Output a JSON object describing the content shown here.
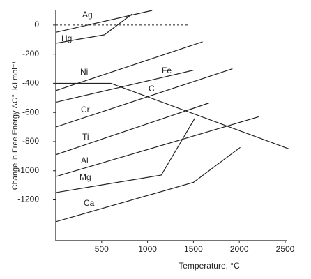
{
  "chart_data": {
    "type": "line",
    "x_label": "Temperature, °C",
    "y_label": "Change in Free Energy ΔG°, kJ mol⁻¹",
    "xlim": [
      0,
      2500
    ],
    "ylim": [
      -1480,
      100
    ],
    "xticks": [
      500,
      1000,
      1500,
      2000,
      2500
    ],
    "yticks": [
      0,
      -200,
      -400,
      -600,
      -800,
      -1000,
      -1200
    ],
    "color": "#222222",
    "series": [
      {
        "name": "Ag",
        "x": [
          0,
          1050
        ],
        "values": [
          -50,
          100
        ]
      },
      {
        "name": "Hg",
        "x": [
          0,
          530,
          830
        ],
        "values": [
          -125,
          -67,
          75
        ]
      },
      {
        "name": "Ni",
        "x": [
          0,
          1600
        ],
        "values": [
          -450,
          -115
        ]
      },
      {
        "name": "Fe",
        "x": [
          0,
          1500
        ],
        "values": [
          -530,
          -310
        ]
      },
      {
        "name": "C",
        "x": [
          0,
          600,
          2540
        ],
        "values": [
          -400,
          -400,
          -850
        ]
      },
      {
        "name": "Cr",
        "x": [
          0,
          1925
        ],
        "values": [
          -700,
          -300
        ]
      },
      {
        "name": "Ti",
        "x": [
          0,
          1670
        ],
        "values": [
          -890,
          -535
        ]
      },
      {
        "name": "Al",
        "x": [
          0,
          2210
        ],
        "values": [
          -1040,
          -630
        ]
      },
      {
        "name": "Mg",
        "x": [
          0,
          1150,
          1515
        ],
        "values": [
          -1150,
          -1030,
          -640
        ]
      },
      {
        "name": "Ca",
        "x": [
          0,
          1500,
          2010
        ],
        "values": [
          -1350,
          -1080,
          -840
        ]
      }
    ]
  }
}
